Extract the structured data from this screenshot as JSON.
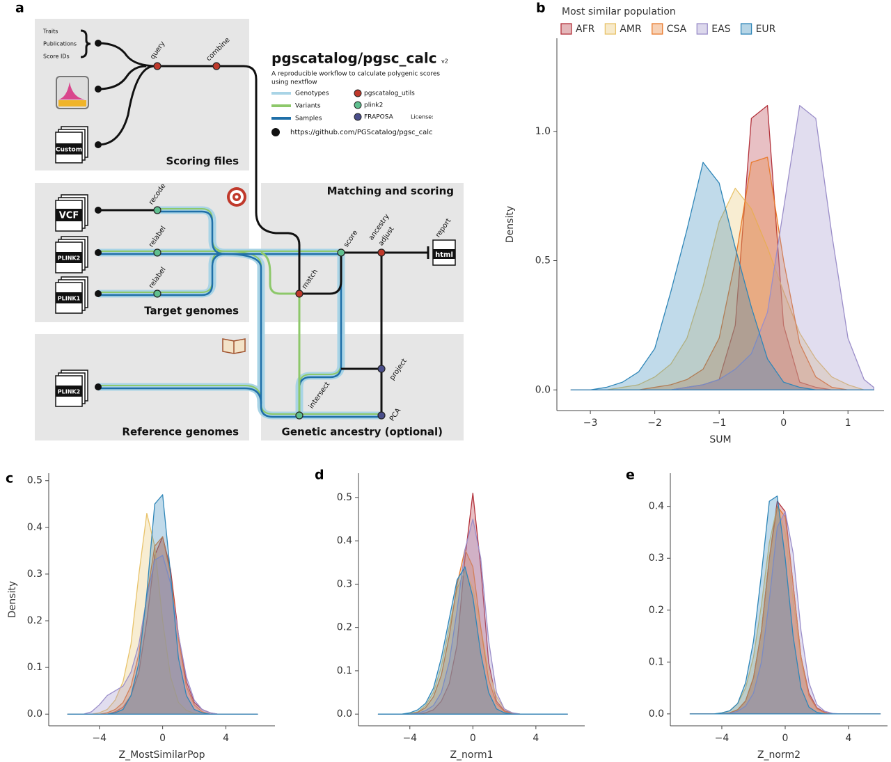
{
  "panel_a": {
    "panel_label": "a",
    "scoring_inputs": [
      "Traits",
      "Publications",
      "Score IDs"
    ],
    "custom_icon": "Custom",
    "box_titles": {
      "scoring": "Scoring files",
      "target": "Target genomes",
      "matching": "Matching and scoring",
      "reference": "Reference genomes",
      "ancestry": "Genetic ancestry (optional)"
    },
    "title": "pgscatalog/pgsc_calc",
    "version": "v2",
    "description": [
      "A reproducible workflow to calculate polygenic scores",
      "using nextflow"
    ],
    "legend": {
      "lines": [
        "Genotypes",
        "Variants",
        "Samples"
      ],
      "nodes": [
        "pgscatalog_utils",
        "plink2",
        "FRAPOSA"
      ],
      "license": "License:"
    },
    "url": "https://github.com/PGScatalog/pgsc_calc",
    "file_icons": [
      "VCF",
      "PLINK2",
      "PLINK1",
      "PLINK2"
    ],
    "steps": {
      "query": "query",
      "combine": "combine",
      "recode": "recode",
      "relabel": "relabel",
      "score": "score",
      "ancestry_adjust": [
        "ancestry",
        "adjust"
      ],
      "report": "report",
      "match": "match",
      "intersect": "intersect",
      "project": "project",
      "pca": "PCA"
    },
    "report_icon": "html"
  },
  "chart_data": [
    {
      "type": "area",
      "label": "b",
      "xlabel": "SUM",
      "ylabel": "Density",
      "legend_title": "Most similar population",
      "legend_position": "top-left",
      "x": [
        -3.3,
        -3,
        -2.75,
        -2.5,
        -2.25,
        -2,
        -1.75,
        -1.5,
        -1.25,
        -1,
        -0.75,
        -0.5,
        -0.25,
        0,
        0.25,
        0.5,
        0.75,
        1,
        1.25,
        1.4
      ],
      "series": [
        {
          "name": "AFR",
          "color": "#b2303a",
          "values": [
            0,
            0,
            0,
            0,
            0,
            0,
            0,
            0.01,
            0.02,
            0.04,
            0.25,
            1.05,
            1.1,
            0.25,
            0.03,
            0.01,
            0,
            0,
            0,
            0
          ]
        },
        {
          "name": "AMR",
          "color": "#e8c36a",
          "values": [
            0,
            0,
            0,
            0.01,
            0.02,
            0.05,
            0.1,
            0.2,
            0.4,
            0.65,
            0.78,
            0.7,
            0.55,
            0.38,
            0.22,
            0.12,
            0.05,
            0.02,
            0,
            0
          ]
        },
        {
          "name": "CSA",
          "color": "#e97a2c",
          "values": [
            0,
            0,
            0,
            0,
            0,
            0.01,
            0.02,
            0.04,
            0.08,
            0.2,
            0.5,
            0.88,
            0.9,
            0.5,
            0.18,
            0.05,
            0.01,
            0,
            0,
            0
          ]
        },
        {
          "name": "EAS",
          "color": "#9b8ec9",
          "values": [
            0,
            0,
            0,
            0,
            0,
            0,
            0,
            0.01,
            0.02,
            0.04,
            0.08,
            0.14,
            0.3,
            0.7,
            1.1,
            1.05,
            0.6,
            0.2,
            0.04,
            0.01
          ]
        },
        {
          "name": "EUR",
          "color": "#2f86b8",
          "values": [
            0,
            0,
            0.01,
            0.03,
            0.07,
            0.16,
            0.38,
            0.62,
            0.88,
            0.8,
            0.55,
            0.32,
            0.12,
            0.03,
            0.01,
            0,
            0,
            0,
            0,
            0
          ]
        }
      ],
      "xlim": [
        -3.52,
        1.56
      ],
      "ylim": [
        -0.08,
        1.36
      ],
      "xticks": [
        {
          "value": -3,
          "label": "−3"
        },
        {
          "value": -2,
          "label": "−2"
        },
        {
          "value": -1,
          "label": "−1"
        },
        0,
        1
      ],
      "yticks": [
        {
          "value": 0,
          "label": "0.0"
        },
        0.5,
        {
          "value": 1,
          "label": "1.0"
        }
      ]
    },
    {
      "type": "area",
      "label": "c",
      "xlabel": "Z_MostSimilarPop",
      "ylabel": "Density",
      "x": [
        -6,
        -5.5,
        -5,
        -4.5,
        -4,
        -3.5,
        -3,
        -2.5,
        -2,
        -1.5,
        -1,
        -0.5,
        0,
        0.5,
        1,
        1.5,
        2,
        2.5,
        3,
        3.5,
        4,
        4.5,
        5,
        5.5,
        6
      ],
      "series": [
        {
          "color": "#b2303a",
          "values": [
            0,
            0,
            0,
            0,
            0,
            0,
            0.005,
            0.015,
            0.04,
            0.09,
            0.2,
            0.34,
            0.38,
            0.31,
            0.17,
            0.07,
            0.025,
            0.01,
            0.003,
            0,
            0,
            0,
            0,
            0,
            0
          ]
        },
        {
          "color": "#e8c36a",
          "values": [
            0,
            0,
            0,
            0,
            0.003,
            0.01,
            0.03,
            0.07,
            0.15,
            0.3,
            0.43,
            0.36,
            0.2,
            0.08,
            0.025,
            0.008,
            0.002,
            0,
            0,
            0,
            0,
            0,
            0,
            0,
            0
          ]
        },
        {
          "color": "#e97a2c",
          "values": [
            0,
            0,
            0,
            0,
            0,
            0.003,
            0.01,
            0.025,
            0.06,
            0.13,
            0.25,
            0.36,
            0.38,
            0.3,
            0.16,
            0.06,
            0.02,
            0.005,
            0,
            0,
            0,
            0,
            0,
            0,
            0
          ]
        },
        {
          "color": "#9b8ec9",
          "values": [
            0,
            0,
            0,
            0.005,
            0.02,
            0.04,
            0.05,
            0.06,
            0.09,
            0.15,
            0.25,
            0.33,
            0.34,
            0.28,
            0.17,
            0.08,
            0.03,
            0.01,
            0.003,
            0,
            0,
            0,
            0,
            0,
            0
          ]
        },
        {
          "color": "#2f86b8",
          "values": [
            0,
            0,
            0,
            0,
            0,
            0,
            0.003,
            0.01,
            0.04,
            0.11,
            0.26,
            0.45,
            0.47,
            0.3,
            0.12,
            0.04,
            0.01,
            0.003,
            0,
            0,
            0,
            0,
            0,
            0,
            0
          ]
        }
      ],
      "xlim": [
        -7.2,
        7.1
      ],
      "ylim": [
        -0.025,
        0.516
      ],
      "xticks": [
        {
          "value": -4,
          "label": "−4"
        },
        0,
        4
      ],
      "yticks": [
        {
          "value": 0,
          "label": "0.0"
        },
        0.1,
        0.2,
        0.3,
        0.4,
        0.5
      ]
    },
    {
      "type": "area",
      "label": "d",
      "xlabel": "Z_norm1",
      "x": [
        -6,
        -5.5,
        -5,
        -4.5,
        -4,
        -3.5,
        -3,
        -2.5,
        -2,
        -1.5,
        -1,
        -0.5,
        0,
        0.5,
        1,
        1.5,
        2,
        2.5,
        3,
        3.5,
        4,
        4.5,
        5,
        5.5,
        6
      ],
      "series": [
        {
          "color": "#b2303a",
          "values": [
            0,
            0,
            0,
            0,
            0,
            0,
            0.003,
            0.01,
            0.03,
            0.07,
            0.16,
            0.36,
            0.51,
            0.34,
            0.12,
            0.03,
            0.008,
            0.002,
            0,
            0,
            0,
            0,
            0,
            0,
            0
          ]
        },
        {
          "color": "#e8c36a",
          "values": [
            0,
            0,
            0,
            0,
            0.002,
            0.005,
            0.02,
            0.05,
            0.11,
            0.2,
            0.29,
            0.33,
            0.29,
            0.2,
            0.1,
            0.04,
            0.012,
            0.003,
            0,
            0,
            0,
            0,
            0,
            0,
            0
          ]
        },
        {
          "color": "#e97a2c",
          "values": [
            0,
            0,
            0,
            0,
            0,
            0.004,
            0.015,
            0.04,
            0.09,
            0.18,
            0.3,
            0.38,
            0.34,
            0.2,
            0.08,
            0.025,
            0.006,
            0.001,
            0,
            0,
            0,
            0,
            0,
            0,
            0
          ]
        },
        {
          "color": "#9b8ec9",
          "values": [
            0,
            0,
            0,
            0,
            0,
            0.002,
            0.008,
            0.02,
            0.05,
            0.12,
            0.24,
            0.38,
            0.45,
            0.36,
            0.17,
            0.05,
            0.012,
            0.003,
            0,
            0,
            0,
            0,
            0,
            0,
            0
          ]
        },
        {
          "color": "#2f86b8",
          "values": [
            0,
            0,
            0,
            0,
            0.003,
            0.01,
            0.025,
            0.06,
            0.13,
            0.22,
            0.31,
            0.34,
            0.27,
            0.14,
            0.05,
            0.012,
            0.003,
            0,
            0,
            0,
            0,
            0,
            0,
            0,
            0
          ]
        }
      ],
      "xlim": [
        -7.26,
        7.1
      ],
      "ylim": [
        -0.027,
        0.556
      ],
      "xticks": [
        {
          "value": -4,
          "label": "−4"
        },
        0,
        4
      ],
      "yticks": [
        {
          "value": 0,
          "label": "0.0"
        },
        0.1,
        0.2,
        0.3,
        0.4,
        0.5
      ]
    },
    {
      "type": "area",
      "label": "e",
      "xlabel": "Z_norm2",
      "x": [
        -6,
        -5.5,
        -5,
        -4.5,
        -4,
        -3.5,
        -3,
        -2.5,
        -2,
        -1.5,
        -1,
        -0.5,
        0,
        0.5,
        1,
        1.5,
        2,
        2.5,
        3,
        3.5,
        4,
        4.5,
        5,
        5.5,
        6
      ],
      "series": [
        {
          "color": "#b2303a",
          "values": [
            0,
            0,
            0,
            0,
            0,
            0.002,
            0.008,
            0.025,
            0.07,
            0.16,
            0.3,
            0.41,
            0.39,
            0.25,
            0.11,
            0.04,
            0.012,
            0.003,
            0,
            0,
            0,
            0,
            0,
            0,
            0
          ]
        },
        {
          "color": "#e8c36a",
          "values": [
            0,
            0,
            0,
            0,
            0.002,
            0.006,
            0.02,
            0.05,
            0.11,
            0.21,
            0.33,
            0.4,
            0.35,
            0.22,
            0.1,
            0.035,
            0.01,
            0.002,
            0,
            0,
            0,
            0,
            0,
            0,
            0
          ]
        },
        {
          "color": "#e97a2c",
          "values": [
            0,
            0,
            0,
            0,
            0,
            0.002,
            0.008,
            0.025,
            0.07,
            0.16,
            0.3,
            0.4,
            0.38,
            0.25,
            0.11,
            0.035,
            0.01,
            0.002,
            0,
            0,
            0,
            0,
            0,
            0,
            0
          ]
        },
        {
          "color": "#9b8ec9",
          "values": [
            0,
            0,
            0,
            0,
            0,
            0.001,
            0.005,
            0.015,
            0.04,
            0.1,
            0.22,
            0.36,
            0.39,
            0.31,
            0.16,
            0.06,
            0.018,
            0.005,
            0.001,
            0,
            0,
            0,
            0,
            0,
            0
          ]
        },
        {
          "color": "#2f86b8",
          "values": [
            0,
            0,
            0,
            0,
            0.002,
            0.006,
            0.02,
            0.06,
            0.14,
            0.27,
            0.41,
            0.42,
            0.3,
            0.15,
            0.05,
            0.013,
            0.003,
            0,
            0,
            0,
            0,
            0,
            0,
            0,
            0
          ]
        }
      ],
      "xlim": [
        -7.25,
        6.46
      ],
      "ylim": [
        -0.023,
        0.464
      ],
      "xticks": [
        {
          "value": -4,
          "label": "−4"
        },
        0,
        4
      ],
      "yticks": [
        {
          "value": 0,
          "label": "0.0"
        },
        0.1,
        0.2,
        0.3,
        0.4
      ]
    }
  ]
}
